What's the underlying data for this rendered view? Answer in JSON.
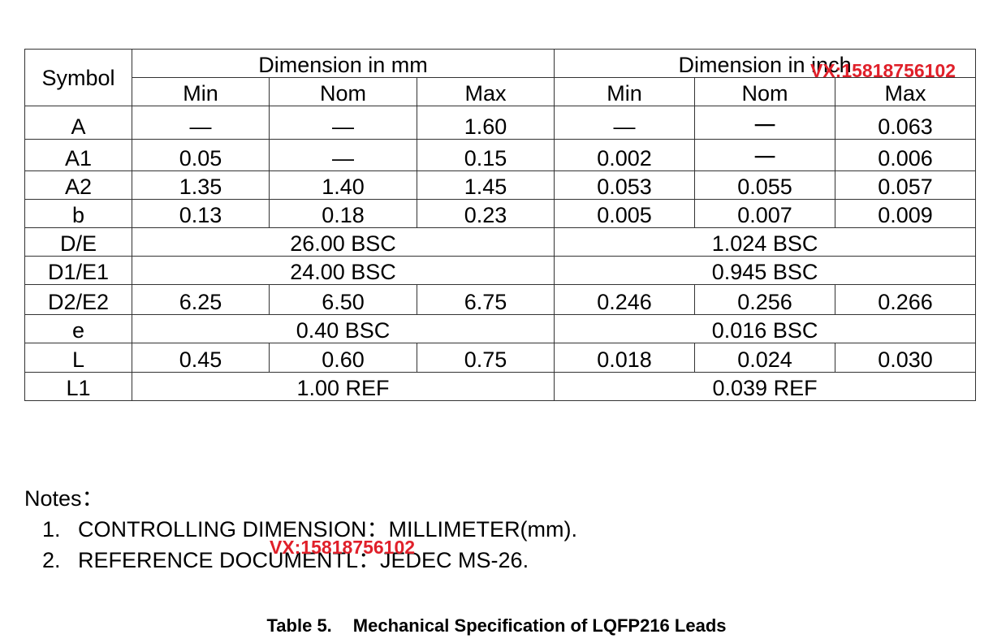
{
  "table": {
    "header": {
      "symbol": "Symbol",
      "mm": "Dimension in mm",
      "inch": "Dimension in inch",
      "sub": [
        "Min",
        "Nom",
        "Max",
        "Min",
        "Nom",
        "Max"
      ]
    },
    "rows": [
      [
        "A",
        "—",
        "—",
        "1.60",
        "—",
        "一",
        "0.063"
      ],
      [
        "A1",
        "0.05",
        "—",
        "0.15",
        "0.002",
        "一",
        "0.006"
      ],
      [
        "A2",
        "1.35",
        "1.40",
        "1.45",
        "0.053",
        "0.055",
        "0.057"
      ],
      [
        "b",
        "0.13",
        "0.18",
        "0.23",
        "0.005",
        "0.007",
        "0.009"
      ],
      [
        "D/E",
        "26.00 BSC",
        "1.024 BSC"
      ],
      [
        "D1/E1",
        "24.00 BSC",
        "0.945 BSC"
      ],
      [
        "D2/E2",
        "6.25",
        "6.50",
        "6.75",
        "0.246",
        "0.256",
        "0.266"
      ],
      [
        "e",
        "0.40 BSC",
        "0.016 BSC"
      ],
      [
        "L",
        "0.45",
        "0.60",
        "0.75",
        "0.018",
        "0.024",
        "0.030"
      ],
      [
        "L1",
        "1.00 REF",
        "0.039 REF"
      ]
    ]
  },
  "notes": {
    "title": "Notes：",
    "items": [
      {
        "number": "1.",
        "text": "CONTROLLING DIMENSION：MILLIMETER(mm)."
      },
      {
        "number": "2.",
        "text": "REFERENCE DOCUMENTL：JEDEC MS-26."
      }
    ]
  },
  "caption": {
    "number": "Table 5.",
    "text": "Mechanical Specification of LQFP216 Leads"
  },
  "watermarks": [
    "VX:15818756102",
    "VX:15818756102"
  ]
}
